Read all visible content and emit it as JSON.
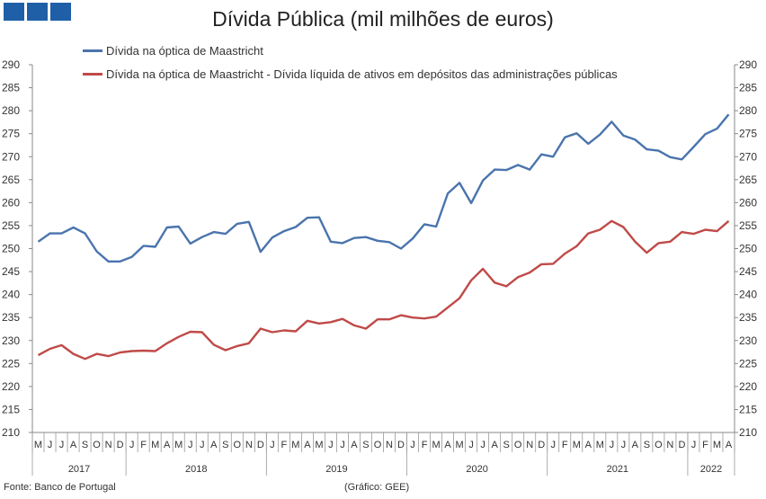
{
  "header": {
    "logo": "logo-squares"
  },
  "chart_data": {
    "type": "line",
    "title": "Dívida Pública (mil milhões de euros)",
    "ylim": [
      210,
      290
    ],
    "y_ticks": [
      210,
      215,
      220,
      225,
      230,
      235,
      240,
      245,
      250,
      255,
      260,
      265,
      270,
      275,
      280,
      285,
      290
    ],
    "grid": false,
    "legend_position": "top-left",
    "months": [
      "M",
      "J",
      "J",
      "A",
      "S",
      "O",
      "N",
      "D",
      "J",
      "F",
      "M",
      "A",
      "M",
      "J",
      "J",
      "A",
      "S",
      "O",
      "N",
      "D",
      "J",
      "F",
      "M",
      "A",
      "M",
      "J",
      "J",
      "A",
      "S",
      "O",
      "N",
      "D",
      "J",
      "F",
      "M",
      "A",
      "M",
      "J",
      "J",
      "A",
      "S",
      "O",
      "N",
      "D",
      "J",
      "F",
      "M",
      "A",
      "M",
      "J",
      "J",
      "A",
      "S",
      "O",
      "N",
      "D",
      "J",
      "F",
      "M",
      "A"
    ],
    "years": [
      {
        "label": "2017",
        "start": 0,
        "count": 8
      },
      {
        "label": "2018",
        "start": 8,
        "count": 12
      },
      {
        "label": "2019",
        "start": 20,
        "count": 12
      },
      {
        "label": "2020",
        "start": 32,
        "count": 12
      },
      {
        "label": "2021",
        "start": 44,
        "count": 12
      },
      {
        "label": "2022",
        "start": 56,
        "count": 4
      }
    ],
    "series": [
      {
        "name": "Dívida na óptica de Maastricht",
        "color": "#4a74ad",
        "values": [
          251.5,
          253.3,
          253.3,
          254.6,
          253.3,
          249.4,
          247.2,
          247.2,
          248.2,
          250.6,
          250.4,
          254.6,
          254.8,
          251.1,
          252.5,
          253.6,
          253.2,
          255.4,
          255.8,
          249.3,
          252.4,
          253.8,
          254.7,
          256.7,
          256.8,
          251.5,
          251.2,
          252.3,
          252.5,
          251.7,
          251.4,
          250.0,
          252.2,
          255.3,
          254.8,
          262.0,
          264.3,
          259.9,
          264.8,
          267.2,
          267.1,
          268.2,
          267.2,
          270.5,
          270.0,
          274.2,
          275.1,
          272.8,
          274.8,
          277.6,
          274.6,
          273.7,
          271.6,
          271.3,
          269.9,
          269.4,
          272.1,
          274.9,
          276.1,
          279.2
        ]
      },
      {
        "name": "Dívida na óptica de Maastricht - Dívida líquida de ativos em depósitos das administrações públicas",
        "color": "#bf4a48",
        "values": [
          226.8,
          228.2,
          229.0,
          227.1,
          226.0,
          227.1,
          226.6,
          227.4,
          227.7,
          227.8,
          227.7,
          229.4,
          230.8,
          231.9,
          231.8,
          229.1,
          227.9,
          228.8,
          229.4,
          232.6,
          231.8,
          232.2,
          232.0,
          234.3,
          233.7,
          234.0,
          234.7,
          233.3,
          232.6,
          234.6,
          234.6,
          235.5,
          235.0,
          234.8,
          235.2,
          237.2,
          239.2,
          243.1,
          245.6,
          242.6,
          241.8,
          243.8,
          244.8,
          246.6,
          246.7,
          248.9,
          250.5,
          253.3,
          254.1,
          256.0,
          254.7,
          251.5,
          249.1,
          251.2,
          251.5,
          253.6,
          253.2,
          254.1,
          253.8,
          256.0
        ]
      }
    ]
  },
  "footer": {
    "source": "Fonte: Banco de Portugal",
    "credit": "(Gráfico: GEE)"
  }
}
